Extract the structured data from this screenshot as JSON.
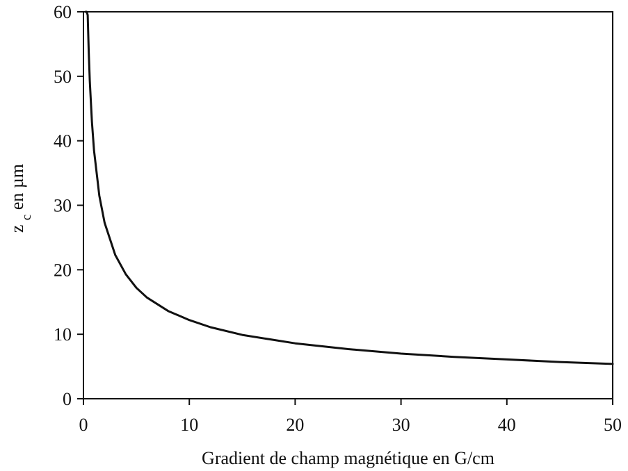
{
  "chart_data": {
    "type": "line",
    "title": "",
    "xlabel": "Gradient de champ magnétique en G/cm",
    "ylabel_main": "z",
    "ylabel_sub": "c",
    "ylabel_rest": " en µm",
    "xlim": [
      0,
      50
    ],
    "ylim": [
      0,
      60
    ],
    "xticks": [
      0,
      10,
      20,
      30,
      40,
      50
    ],
    "yticks": [
      0,
      10,
      20,
      30,
      40,
      50,
      60
    ],
    "grid": false,
    "legend": "none",
    "series": [
      {
        "color": "#111111",
        "x": [
          0.2,
          0.3,
          0.4,
          0.5,
          0.6,
          0.8,
          1,
          1.5,
          2,
          3,
          4,
          5,
          6,
          8,
          10,
          12,
          15,
          20,
          25,
          30,
          35,
          40,
          45,
          50
        ],
        "y": [
          60,
          60,
          59.5,
          53.8,
          49.3,
          42.9,
          38.5,
          31.5,
          27.3,
          22.3,
          19.3,
          17.2,
          15.7,
          13.6,
          12.2,
          11.1,
          9.9,
          8.6,
          7.7,
          7.0,
          6.5,
          6.1,
          5.7,
          5.4
        ]
      }
    ]
  }
}
